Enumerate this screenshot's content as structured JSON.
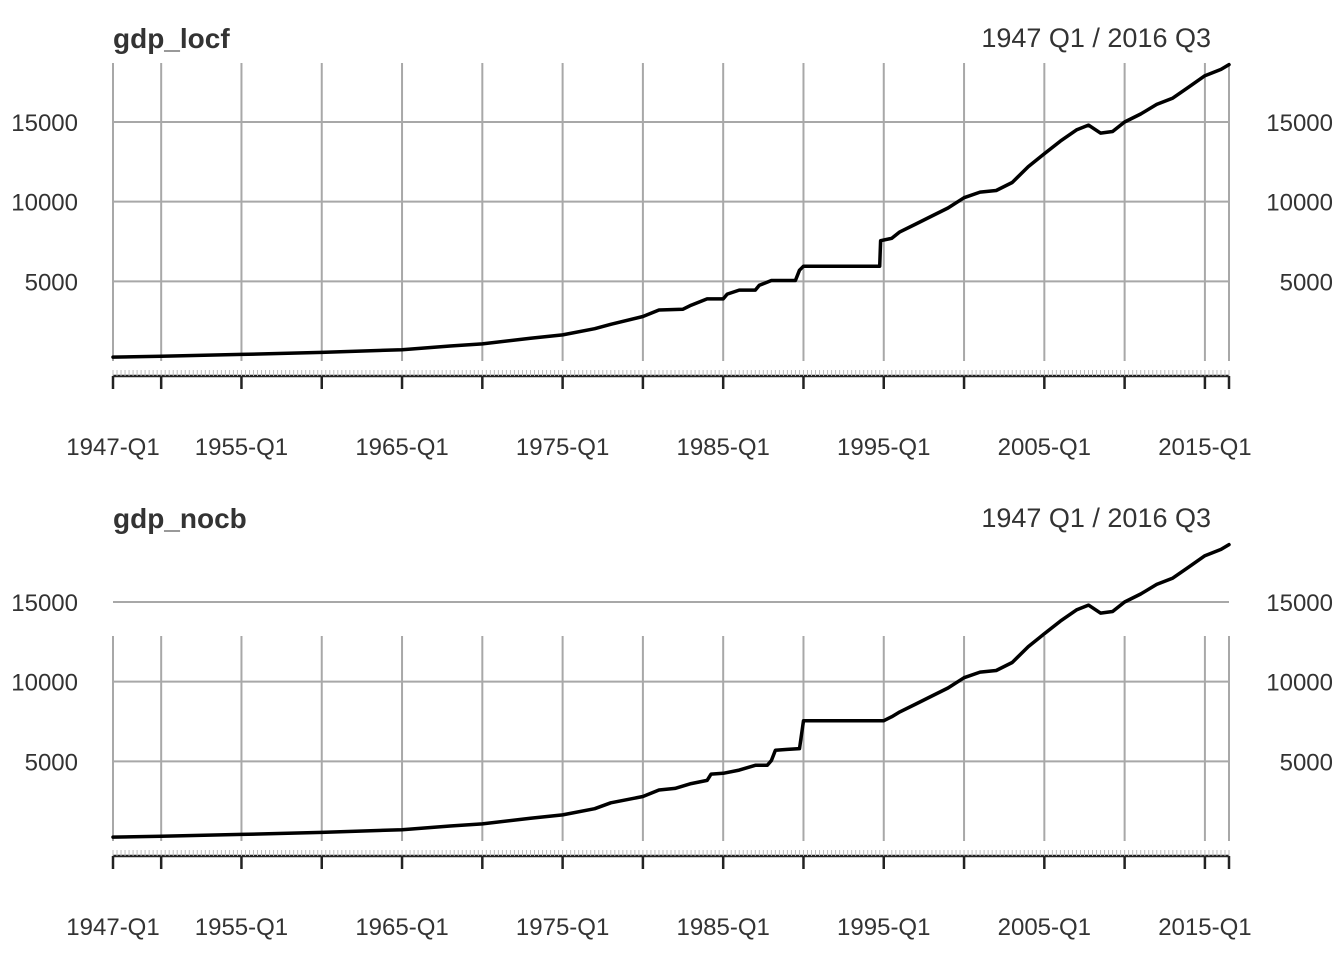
{
  "chart_data": [
    {
      "type": "line",
      "title": "gdp_locf",
      "date_range": "1947 Q1 / 2016 Q3",
      "x_range": [
        "1947-Q1",
        "2016-Q3"
      ],
      "xticks": [
        "1947-Q1",
        "1955-Q1",
        "1965-Q1",
        "1975-Q1",
        "1985-Q1",
        "1995-Q1",
        "2005-Q1",
        "2015-Q1"
      ],
      "yticks": [
        5000,
        10000,
        15000
      ],
      "ylim": [
        0,
        18700
      ],
      "grid": true,
      "series": [
        {
          "x": [
            1947.0,
            1950.0,
            1955.0,
            1960.0,
            1965.0,
            1968.0,
            1970.0,
            1973.0,
            1975.0,
            1977.0,
            1978.0,
            1980.0,
            1981.0,
            1982.5,
            1983.0,
            1984.0,
            1985.0,
            1985.25,
            1986.0,
            1987.0,
            1987.25,
            1988.0,
            1989.0,
            1989.5,
            1989.75,
            1990.0,
            1994.75,
            1994.8,
            1995.5,
            1996.0,
            1997.0,
            1998.0,
            1999.0,
            2000.0,
            2001.0,
            2002.0,
            2003.0,
            2004.0,
            2005.0,
            2006.0,
            2007.0,
            2007.75,
            2008.5,
            2009.25,
            2010.0,
            2011.0,
            2012.0,
            2013.0,
            2014.0,
            2015.0,
            2016.0,
            2016.5
          ],
          "y": [
            243,
            300,
            415,
            540,
            710,
            940,
            1070,
            1430,
            1640,
            2030,
            2300,
            2790,
            3200,
            3250,
            3500,
            3900,
            3900,
            4200,
            4450,
            4450,
            4750,
            5050,
            5050,
            5050,
            5700,
            5950,
            5950,
            7550,
            7700,
            8100,
            8600,
            9100,
            9600,
            10250,
            10600,
            10700,
            11200,
            12200,
            13000,
            13800,
            14500,
            14800,
            14300,
            14400,
            15000,
            15500,
            16100,
            16500,
            17200,
            17900,
            18300,
            18600
          ]
        }
      ]
    },
    {
      "type": "line",
      "title": "gdp_nocb",
      "date_range": "1947 Q1 / 2016 Q3",
      "x_range": [
        "1947-Q1",
        "2016-Q3"
      ],
      "xticks": [
        "1947-Q1",
        "1955-Q1",
        "1965-Q1",
        "1975-Q1",
        "1985-Q1",
        "1995-Q1",
        "2005-Q1",
        "2015-Q1"
      ],
      "yticks": [
        5000,
        10000,
        15000
      ],
      "ylim": [
        0,
        18700
      ],
      "grid": true,
      "series": [
        {
          "x": [
            1947.0,
            1950.0,
            1955.0,
            1960.0,
            1965.0,
            1968.0,
            1970.0,
            1973.0,
            1975.0,
            1977.0,
            1978.0,
            1980.0,
            1981.0,
            1982.0,
            1983.0,
            1984.0,
            1984.25,
            1985.0,
            1986.0,
            1987.0,
            1987.75,
            1988.0,
            1988.25,
            1989.0,
            1989.75,
            1990.0,
            1995.0,
            1995.5,
            1996.0,
            1997.0,
            1998.0,
            1999.0,
            2000.0,
            2001.0,
            2002.0,
            2003.0,
            2004.0,
            2005.0,
            2006.0,
            2007.0,
            2007.75,
            2008.5,
            2009.25,
            2010.0,
            2011.0,
            2012.0,
            2013.0,
            2014.0,
            2015.0,
            2016.0,
            2016.5
          ],
          "y": [
            243,
            300,
            415,
            540,
            710,
            940,
            1070,
            1430,
            1640,
            2030,
            2400,
            2790,
            3200,
            3300,
            3600,
            3800,
            4200,
            4250,
            4450,
            4750,
            4750,
            5050,
            5700,
            5750,
            5800,
            7550,
            7550,
            7800,
            8100,
            8600,
            9100,
            9600,
            10250,
            10600,
            10700,
            11200,
            12200,
            13000,
            13800,
            14500,
            14800,
            14300,
            14400,
            15000,
            15500,
            16100,
            16500,
            17200,
            17900,
            18300,
            18600
          ]
        }
      ]
    }
  ]
}
